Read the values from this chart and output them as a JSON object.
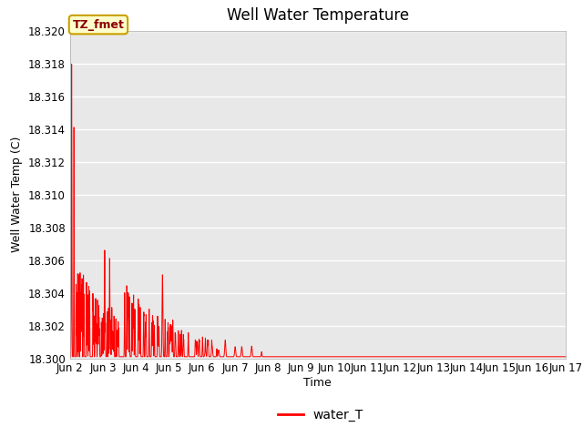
{
  "title": "Well Water Temperature",
  "ylabel": "Well Water Temp (C)",
  "xlabel": "Time",
  "ylim": [
    18.3,
    18.32
  ],
  "xlim": [
    0,
    15
  ],
  "xtick_labels": [
    "Jun 2",
    "Jun 3",
    "Jun 4",
    "Jun 5",
    "Jun 6",
    "Jun 7",
    "Jun 8",
    "Jun 9",
    "Jun 10",
    "Jun 11",
    "Jun 12",
    "Jun 13",
    "Jun 14",
    "Jun 15",
    "Jun 16",
    "Jun 17"
  ],
  "xtick_positions": [
    0,
    1,
    2,
    3,
    4,
    5,
    6,
    7,
    8,
    9,
    10,
    11,
    12,
    13,
    14,
    15
  ],
  "ytick_labels": [
    "18.300",
    "18.302",
    "18.304",
    "18.306",
    "18.308",
    "18.310",
    "18.312",
    "18.314",
    "18.316",
    "18.318",
    "18.320"
  ],
  "ytick_values": [
    18.3,
    18.302,
    18.304,
    18.306,
    18.308,
    18.31,
    18.312,
    18.314,
    18.316,
    18.318,
    18.32
  ],
  "line_color": "#ff0000",
  "legend_label": "water_T",
  "annotation_text": "TZ_fmet",
  "annotation_bg": "#ffffcc",
  "annotation_border": "#c8a000",
  "plot_bg": "#e8e8e8",
  "fig_bg": "#ffffff",
  "title_fontsize": 12,
  "axis_fontsize": 9,
  "tick_fontsize": 8.5,
  "annotation_fontsize": 9
}
